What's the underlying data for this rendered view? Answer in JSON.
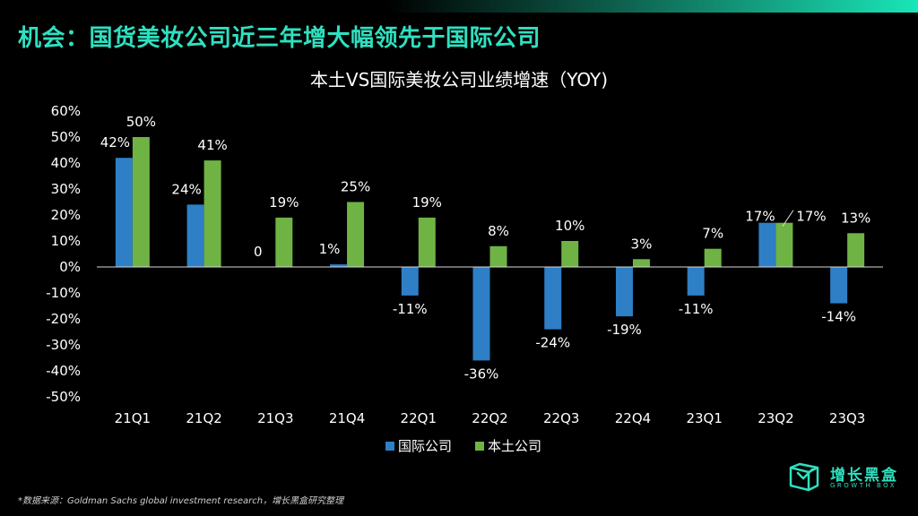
{
  "header": {
    "title": "机会：国货美妆公司近三年增大幅领先于国际公司"
  },
  "chart_data": {
    "type": "bar",
    "title": "本土VS国际美妆公司业绩增速（YOY)",
    "categories": [
      "21Q1",
      "21Q2",
      "21Q3",
      "21Q4",
      "22Q1",
      "22Q2",
      "22Q3",
      "22Q4",
      "23Q1",
      "23Q2",
      "23Q3"
    ],
    "series": [
      {
        "name": "国际公司",
        "color": "#2e7fc6",
        "values": [
          42,
          24,
          0,
          1,
          -11,
          -36,
          -24,
          -19,
          -11,
          17,
          -14
        ],
        "labels": [
          "42%",
          "24%",
          "0",
          "1%",
          "-11%",
          "-36%",
          "-24%",
          "-19%",
          "-11%",
          "17%",
          "-14%"
        ]
      },
      {
        "name": "本土公司",
        "color": "#6fb345",
        "values": [
          50,
          41,
          19,
          25,
          19,
          8,
          10,
          3,
          7,
          17,
          13
        ],
        "labels": [
          "50%",
          "41%",
          "19%",
          "25%",
          "19%",
          "8%",
          "10%",
          "3%",
          "7%",
          "17%",
          "13%"
        ]
      }
    ],
    "ylim": [
      -50,
      60
    ],
    "yticks": [
      60,
      50,
      40,
      30,
      20,
      10,
      0,
      -10,
      -20,
      -30,
      -40,
      -50
    ],
    "ytick_labels": [
      "60%",
      "50%",
      "40%",
      "30%",
      "20%",
      "10%",
      "0%",
      "-10%",
      "-20%",
      "-30%",
      "-40%",
      "-50%"
    ],
    "legend": "bottom",
    "grid": false
  },
  "footnote": "*数据来源：Goldman Sachs global investment research，增长黑盒研究整理",
  "logo": {
    "name_cn": "增长黑盒",
    "name_en": "GROWTH BOX"
  }
}
